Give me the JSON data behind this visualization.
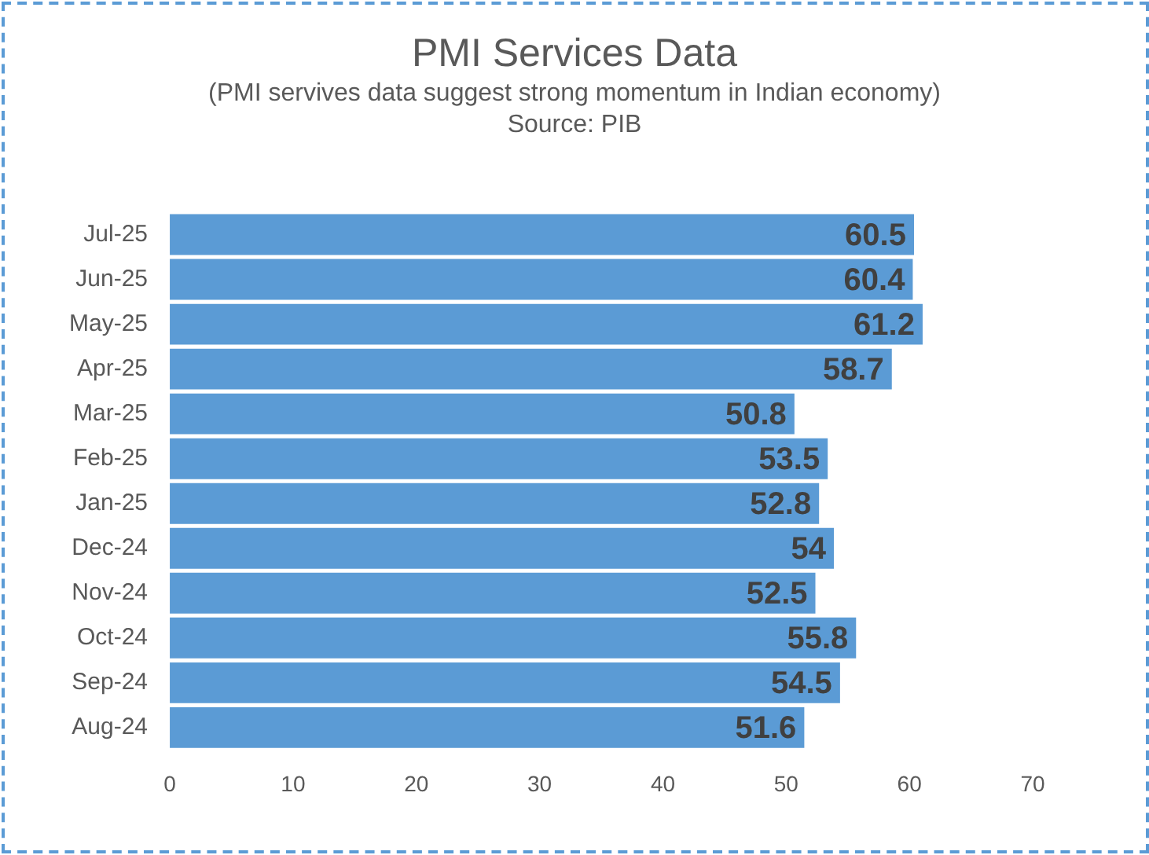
{
  "chart_data": {
    "type": "bar",
    "orientation": "horizontal",
    "title": "PMI Services Data",
    "subtitle": "(PMI servives data suggest strong momentum in Indian economy)",
    "annotations": [
      "Source: PIB"
    ],
    "categories": [
      "Jul-25",
      "Jun-25",
      "May-25",
      "Apr-25",
      "Mar-25",
      "Feb-25",
      "Jan-25",
      "Dec-24",
      "Nov-24",
      "Oct-24",
      "Sep-24",
      "Aug-24"
    ],
    "values": [
      60.5,
      60.4,
      61.2,
      58.7,
      50.8,
      53.5,
      52.8,
      54,
      52.5,
      55.8,
      54.5,
      51.6
    ],
    "color": "#5b9bd5",
    "xlim": [
      0,
      70
    ],
    "xticks": [
      0,
      10,
      20,
      30,
      40,
      50,
      60,
      70
    ],
    "grid": false,
    "legend": false,
    "data_labels": true
  }
}
